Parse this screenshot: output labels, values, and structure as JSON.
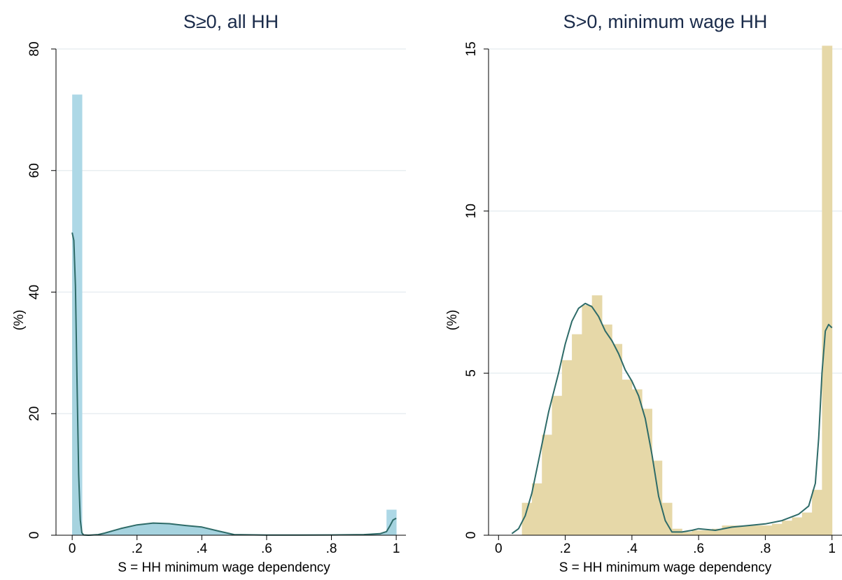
{
  "chart_data": [
    {
      "type": "bar",
      "title": "S≥0, all HH",
      "xlabel": "S = HH minimum wage dependency",
      "ylabel": "(%)",
      "xlim": [
        -0.05,
        1.03
      ],
      "ylim": [
        0,
        80
      ],
      "xticks": [
        0,
        0.2,
        0.4,
        0.6,
        0.8,
        1
      ],
      "xtick_labels": [
        "0",
        ".2",
        ".4",
        ".6",
        ".8",
        "1"
      ],
      "yticks": [
        0,
        20,
        40,
        60,
        80
      ],
      "ytick_labels": [
        "0",
        "20",
        "40",
        "60",
        "80"
      ],
      "grid": true,
      "colors": {
        "bars": "#add8e6",
        "density_fill": "#a6d3df",
        "density_line": "#2e6b68",
        "title": "#1a2b4a"
      },
      "bin_width": 0.03,
      "histogram": {
        "bin_starts": [
          0.0,
          0.97
        ],
        "values": [
          72.5,
          4.2
        ]
      },
      "density": {
        "x": [
          0.0,
          0.005,
          0.01,
          0.015,
          0.02,
          0.025,
          0.03,
          0.035,
          0.05,
          0.08,
          0.1,
          0.15,
          0.2,
          0.25,
          0.3,
          0.35,
          0.4,
          0.45,
          0.5,
          0.6,
          0.7,
          0.8,
          0.9,
          0.95,
          0.97,
          0.98,
          0.99,
          1.0
        ],
        "values": [
          49.8,
          48.5,
          41.0,
          25.0,
          10.0,
          2.5,
          0.4,
          0.05,
          0.0,
          0.1,
          0.35,
          1.1,
          1.7,
          2.0,
          1.9,
          1.6,
          1.35,
          0.7,
          0.1,
          0.03,
          0.03,
          0.05,
          0.1,
          0.25,
          0.6,
          1.5,
          2.5,
          2.8
        ]
      }
    },
    {
      "type": "bar",
      "title": "S>0, minimum wage HH",
      "xlabel": "S = HH minimum wage dependency",
      "ylabel": "(%)",
      "xlim": [
        -0.03,
        1.03
      ],
      "ylim": [
        0,
        15
      ],
      "xticks": [
        0,
        0.2,
        0.4,
        0.6,
        0.8,
        1
      ],
      "xtick_labels": [
        "0",
        ".2",
        ".4",
        ".6",
        ".8",
        "1"
      ],
      "yticks": [
        0,
        5,
        10,
        15
      ],
      "ytick_labels": [
        "0",
        "5",
        "10",
        "15"
      ],
      "grid": true,
      "colors": {
        "bars": "#e6d8a8",
        "density_line": "#2e6b68",
        "title": "#1a2b4a"
      },
      "bin_width": 0.03,
      "histogram": {
        "bin_starts": [
          0.07,
          0.1,
          0.13,
          0.16,
          0.19,
          0.22,
          0.25,
          0.28,
          0.31,
          0.34,
          0.37,
          0.4,
          0.43,
          0.46,
          0.49,
          0.52,
          0.55,
          0.58,
          0.61,
          0.64,
          0.67,
          0.7,
          0.73,
          0.76,
          0.79,
          0.82,
          0.85,
          0.88,
          0.91,
          0.94,
          0.97
        ],
        "values": [
          1.0,
          1.6,
          3.1,
          4.3,
          5.4,
          6.2,
          7.1,
          7.4,
          6.5,
          5.9,
          4.8,
          4.5,
          3.9,
          2.3,
          1.0,
          0.2,
          0.1,
          0.15,
          0.15,
          0.2,
          0.3,
          0.3,
          0.3,
          0.3,
          0.3,
          0.35,
          0.45,
          0.55,
          0.7,
          1.4,
          15.1
        ]
      },
      "density": {
        "x": [
          0.04,
          0.06,
          0.08,
          0.1,
          0.12,
          0.15,
          0.18,
          0.2,
          0.22,
          0.24,
          0.26,
          0.28,
          0.3,
          0.32,
          0.34,
          0.36,
          0.38,
          0.4,
          0.42,
          0.44,
          0.46,
          0.48,
          0.5,
          0.52,
          0.55,
          0.58,
          0.6,
          0.65,
          0.7,
          0.75,
          0.8,
          0.85,
          0.9,
          0.93,
          0.95,
          0.96,
          0.97,
          0.98,
          0.99,
          1.0
        ],
        "values": [
          0.05,
          0.2,
          0.6,
          1.3,
          2.3,
          3.8,
          5.0,
          5.9,
          6.6,
          7.0,
          7.15,
          7.05,
          6.75,
          6.3,
          6.0,
          5.6,
          5.1,
          4.75,
          4.3,
          3.6,
          2.5,
          1.2,
          0.45,
          0.1,
          0.1,
          0.15,
          0.2,
          0.15,
          0.25,
          0.3,
          0.35,
          0.45,
          0.65,
          0.9,
          1.6,
          3.0,
          5.0,
          6.3,
          6.5,
          6.4
        ]
      }
    }
  ]
}
